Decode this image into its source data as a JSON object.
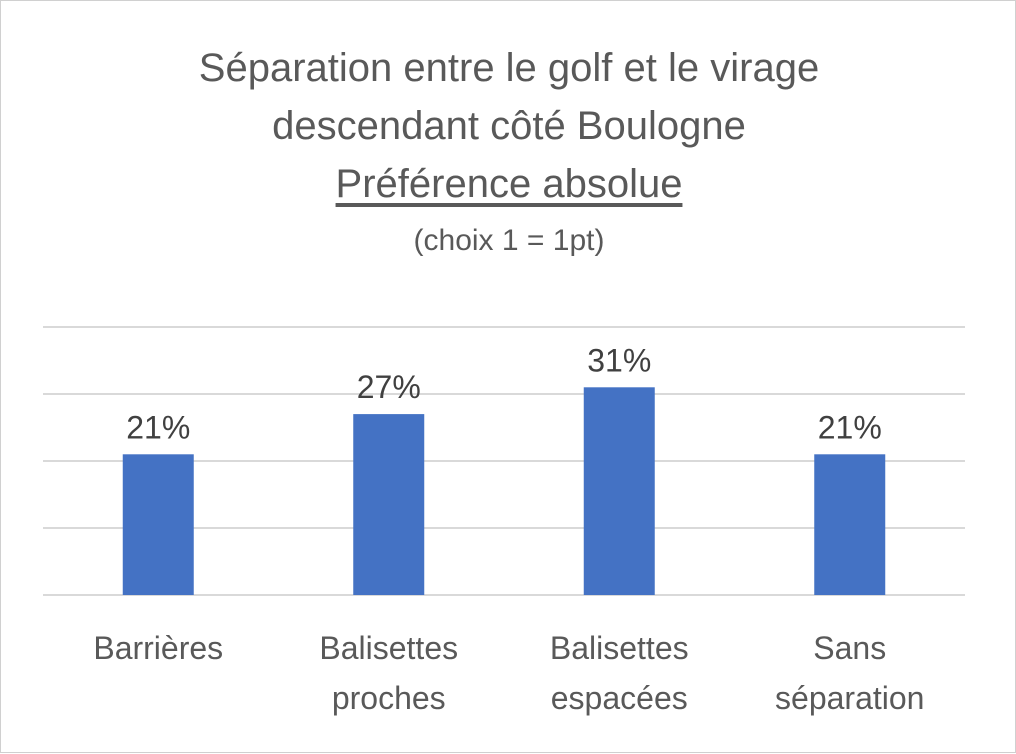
{
  "chart_data": {
    "type": "bar",
    "title_lines": [
      "Séparation entre le golf et le virage",
      "descendant côté Boulogne"
    ],
    "title_emphasis": "Préférence absolue",
    "subtitle": "(choix 1 = 1pt)",
    "categories": [
      [
        "Barrières"
      ],
      [
        "Balisettes",
        "proches"
      ],
      [
        "Balisettes",
        "espacées"
      ],
      [
        "Sans",
        "séparation"
      ]
    ],
    "values": [
      21,
      27,
      31,
      21
    ],
    "value_labels": [
      "21%",
      "27%",
      "31%",
      "21%"
    ],
    "ylim": [
      0,
      40
    ],
    "grid": true,
    "bar_color": "#4472C4",
    "grid_color": "#D9D9D9"
  }
}
